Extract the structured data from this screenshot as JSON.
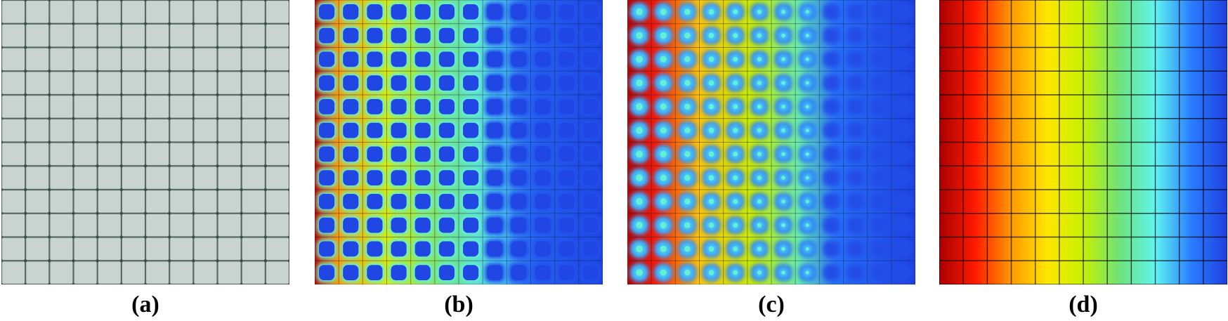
{
  "figure": {
    "grid": {
      "columns": 12,
      "rows": 12
    },
    "panels": [
      {
        "key": "a",
        "caption": "(a)",
        "view": "geometry",
        "fill_color": "#c9d4d1",
        "line_color": "#586a63"
      },
      {
        "key": "b",
        "caption": "(b)",
        "view": "field-cell-walls"
      },
      {
        "key": "c",
        "caption": "(c)",
        "view": "field-cell-centres"
      },
      {
        "key": "d",
        "caption": "(d)",
        "view": "field-horizontal-gradient"
      }
    ],
    "colormap": [
      "#aa0000",
      "#ff1a00",
      "#ff9a00",
      "#ffe600",
      "#c6f000",
      "#6ee27a",
      "#5ff4f0",
      "#2a7dff",
      "#1f3fe0"
    ]
  }
}
